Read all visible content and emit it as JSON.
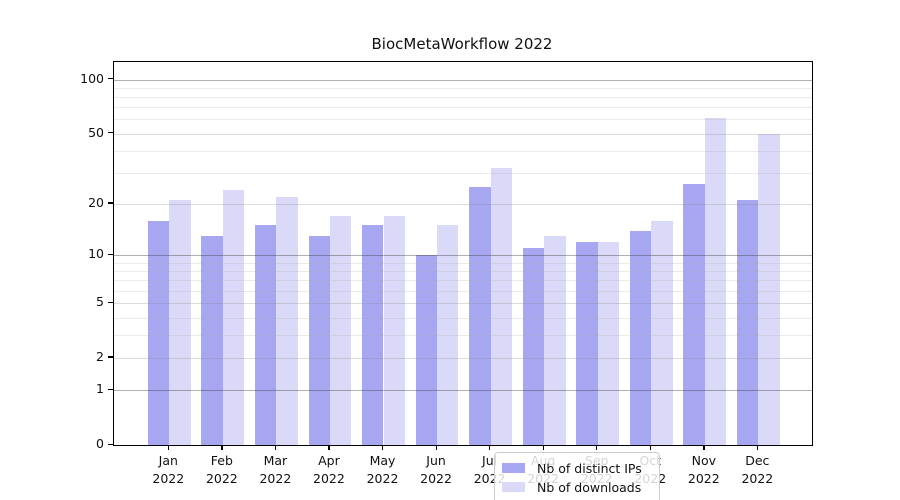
{
  "title": "BiocMetaWorkflow 2022",
  "chart_data": {
    "type": "bar",
    "title": "BiocMetaWorkflow 2022",
    "categories": [
      "Jan",
      "Feb",
      "Mar",
      "Apr",
      "May",
      "Jun",
      "Jul",
      "Aug",
      "Sep",
      "Oct",
      "Nov",
      "Dec"
    ],
    "x_tick_second_line": "2022",
    "series": [
      {
        "name": "Nb of distinct IPs",
        "color": "#a6a6f1",
        "values": [
          16,
          13,
          15,
          13,
          15,
          10,
          25,
          11,
          12,
          14,
          26,
          21
        ]
      },
      {
        "name": "Nb of downloads",
        "color": "#dadaf8",
        "values": [
          21,
          24,
          22,
          17,
          17,
          15,
          32,
          13,
          12,
          16,
          61,
          50
        ]
      }
    ],
    "xlabel": "",
    "ylabel": "",
    "y_axis": {
      "scale": "log1p",
      "min": 0,
      "max": 125,
      "tick_values": [
        0,
        1,
        2,
        5,
        10,
        20,
        50,
        100
      ],
      "tick_labels": [
        "0",
        "1",
        "2",
        "5",
        "10",
        "20",
        "50",
        "100"
      ]
    },
    "gridlines": {
      "major_values": [
        1,
        10,
        100
      ],
      "mid_values": [
        2,
        5,
        20,
        50
      ],
      "minor_values": [
        3,
        4,
        6,
        7,
        8,
        9,
        30,
        40,
        60,
        70,
        80,
        90
      ]
    },
    "legend_position": "bottom-center",
    "grid": "on"
  }
}
